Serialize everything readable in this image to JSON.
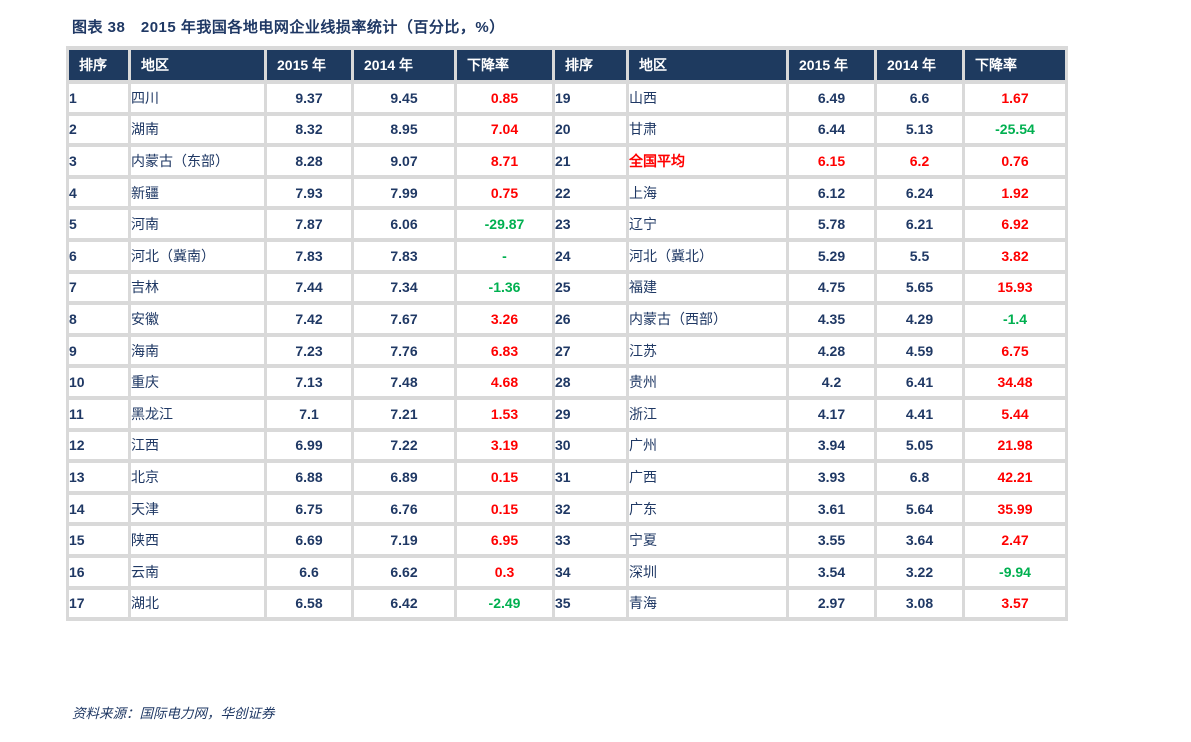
{
  "title": "图表 38　2015 年我国各地电网企业线损率统计（百分比，%）",
  "source_note": "资料来源：国际电力网，华创证券",
  "colors": {
    "header_bg": "#1E3A5F",
    "text_navy": "#1F3864",
    "drop_red": "#FF0000",
    "drop_green": "#00B050",
    "grid_line": "#D9D9D9",
    "highlight_red": "#FF0000"
  },
  "chart_data": {
    "type": "table",
    "title": "图表 38　2015 年我国各地电网企业线损率统计（百分比，%）",
    "columns": [
      "排序",
      "地区",
      "2015 年",
      "2014 年",
      "下降率"
    ],
    "rows_left": [
      {
        "rank": "1",
        "region": "四川",
        "v2015": "9.37",
        "v2014": "9.45",
        "drop": "0.85",
        "drop_color": "red"
      },
      {
        "rank": "2",
        "region": "湖南",
        "v2015": "8.32",
        "v2014": "8.95",
        "drop": "7.04",
        "drop_color": "red"
      },
      {
        "rank": "3",
        "region": "内蒙古（东部）",
        "v2015": "8.28",
        "v2014": "9.07",
        "drop": "8.71",
        "drop_color": "red"
      },
      {
        "rank": "4",
        "region": "新疆",
        "v2015": "7.93",
        "v2014": "7.99",
        "drop": "0.75",
        "drop_color": "red"
      },
      {
        "rank": "5",
        "region": "河南",
        "v2015": "7.87",
        "v2014": "6.06",
        "drop": "-29.87",
        "drop_color": "green"
      },
      {
        "rank": "6",
        "region": "河北（冀南）",
        "v2015": "7.83",
        "v2014": "7.83",
        "drop": "-",
        "drop_color": "green"
      },
      {
        "rank": "7",
        "region": "吉林",
        "v2015": "7.44",
        "v2014": "7.34",
        "drop": "-1.36",
        "drop_color": "green"
      },
      {
        "rank": "8",
        "region": "安徽",
        "v2015": "7.42",
        "v2014": "7.67",
        "drop": "3.26",
        "drop_color": "red"
      },
      {
        "rank": "9",
        "region": "海南",
        "v2015": "7.23",
        "v2014": "7.76",
        "drop": "6.83",
        "drop_color": "red"
      },
      {
        "rank": "10",
        "region": "重庆",
        "v2015": "7.13",
        "v2014": "7.48",
        "drop": "4.68",
        "drop_color": "red"
      },
      {
        "rank": "11",
        "region": "黑龙江",
        "v2015": "7.1",
        "v2014": "7.21",
        "drop": "1.53",
        "drop_color": "red"
      },
      {
        "rank": "12",
        "region": "江西",
        "v2015": "6.99",
        "v2014": "7.22",
        "drop": "3.19",
        "drop_color": "red"
      },
      {
        "rank": "13",
        "region": "北京",
        "v2015": "6.88",
        "v2014": "6.89",
        "drop": "0.15",
        "drop_color": "red"
      },
      {
        "rank": "14",
        "region": "天津",
        "v2015": "6.75",
        "v2014": "6.76",
        "drop": "0.15",
        "drop_color": "red"
      },
      {
        "rank": "15",
        "region": "陕西",
        "v2015": "6.69",
        "v2014": "7.19",
        "drop": "6.95",
        "drop_color": "red"
      },
      {
        "rank": "16",
        "region": "云南",
        "v2015": "6.6",
        "v2014": "6.62",
        "drop": "0.3",
        "drop_color": "red"
      },
      {
        "rank": "17",
        "region": "湖北",
        "v2015": "6.58",
        "v2014": "6.42",
        "drop": "-2.49",
        "drop_color": "green"
      }
    ],
    "rows_right": [
      {
        "rank": "19",
        "region": "山西",
        "v2015": "6.49",
        "v2014": "6.6",
        "drop": "1.67",
        "drop_color": "red"
      },
      {
        "rank": "20",
        "region": "甘肃",
        "v2015": "6.44",
        "v2014": "5.13",
        "drop": "-25.54",
        "drop_color": "green"
      },
      {
        "rank": "21",
        "region": "全国平均",
        "v2015": "6.15",
        "v2014": "6.2",
        "drop": "0.76",
        "drop_color": "red",
        "highlight": true
      },
      {
        "rank": "22",
        "region": "上海",
        "v2015": "6.12",
        "v2014": "6.24",
        "drop": "1.92",
        "drop_color": "red"
      },
      {
        "rank": "23",
        "region": "辽宁",
        "v2015": "5.78",
        "v2014": "6.21",
        "drop": "6.92",
        "drop_color": "red"
      },
      {
        "rank": "24",
        "region": "河北（冀北）",
        "v2015": "5.29",
        "v2014": "5.5",
        "drop": "3.82",
        "drop_color": "red"
      },
      {
        "rank": "25",
        "region": "福建",
        "v2015": "4.75",
        "v2014": "5.65",
        "drop": "15.93",
        "drop_color": "red"
      },
      {
        "rank": "26",
        "region": "内蒙古（西部）",
        "v2015": "4.35",
        "v2014": "4.29",
        "drop": "-1.4",
        "drop_color": "green"
      },
      {
        "rank": "27",
        "region": "江苏",
        "v2015": "4.28",
        "v2014": "4.59",
        "drop": "6.75",
        "drop_color": "red"
      },
      {
        "rank": "28",
        "region": "贵州",
        "v2015": "4.2",
        "v2014": "6.41",
        "drop": "34.48",
        "drop_color": "red"
      },
      {
        "rank": "29",
        "region": "浙江",
        "v2015": "4.17",
        "v2014": "4.41",
        "drop": "5.44",
        "drop_color": "red"
      },
      {
        "rank": "30",
        "region": "广州",
        "v2015": "3.94",
        "v2014": "5.05",
        "drop": "21.98",
        "drop_color": "red"
      },
      {
        "rank": "31",
        "region": "广西",
        "v2015": "3.93",
        "v2014": "6.8",
        "drop": "42.21",
        "drop_color": "red"
      },
      {
        "rank": "32",
        "region": "广东",
        "v2015": "3.61",
        "v2014": "5.64",
        "drop": "35.99",
        "drop_color": "red"
      },
      {
        "rank": "33",
        "region": "宁夏",
        "v2015": "3.55",
        "v2014": "3.64",
        "drop": "2.47",
        "drop_color": "red"
      },
      {
        "rank": "34",
        "region": "深圳",
        "v2015": "3.54",
        "v2014": "3.22",
        "drop": "-9.94",
        "drop_color": "green"
      },
      {
        "rank": "35",
        "region": "青海",
        "v2015": "2.97",
        "v2014": "3.08",
        "drop": "3.57",
        "drop_color": "red"
      }
    ],
    "source": "资料来源：国际电力网，华创证券"
  }
}
